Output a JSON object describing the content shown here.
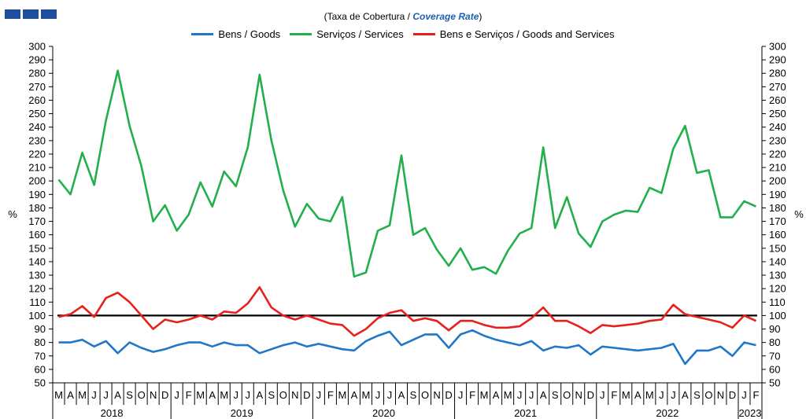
{
  "title": {
    "prefix": "(Taxa de Cobertura / ",
    "english": "Coverage Rate",
    "suffix": ")"
  },
  "colors": {
    "logo": "#1f4e9c",
    "goods": "#1f77c8",
    "services": "#21b04b",
    "goods_services": "#e8201c",
    "reference": "#000000"
  },
  "chart_data": {
    "type": "line",
    "title": "(Taxa de Cobertura / Coverage Rate)",
    "ylabel_left": "%",
    "ylabel_right": "%",
    "ylim": [
      50,
      300
    ],
    "y_ticks": [
      50,
      60,
      70,
      80,
      90,
      100,
      110,
      120,
      130,
      140,
      150,
      160,
      170,
      180,
      190,
      200,
      210,
      220,
      230,
      240,
      250,
      260,
      270,
      280,
      290,
      300
    ],
    "grid": false,
    "legend_position": "top",
    "reference_line": 100,
    "months": [
      "M",
      "A",
      "M",
      "J",
      "J",
      "A",
      "S",
      "O",
      "N",
      "D",
      "J",
      "F",
      "M",
      "A",
      "M",
      "J",
      "J",
      "A",
      "S",
      "O",
      "N",
      "D",
      "J",
      "F",
      "M",
      "A",
      "M",
      "J",
      "J",
      "A",
      "S",
      "O",
      "N",
      "D",
      "J",
      "F",
      "M",
      "A",
      "M",
      "J",
      "J",
      "A",
      "S",
      "O",
      "N",
      "D",
      "J",
      "F",
      "M",
      "A",
      "M",
      "J",
      "J",
      "A",
      "S",
      "O",
      "N",
      "D",
      "J",
      "F"
    ],
    "years": [
      {
        "label": "2018",
        "start": 0,
        "end": 9
      },
      {
        "label": "2019",
        "start": 10,
        "end": 21
      },
      {
        "label": "2020",
        "start": 22,
        "end": 33
      },
      {
        "label": "2021",
        "start": 34,
        "end": 45
      },
      {
        "label": "2022",
        "start": 46,
        "end": 57
      },
      {
        "label": "2023",
        "start": 58,
        "end": 59
      }
    ],
    "series": [
      {
        "name": "Bens / Goods",
        "color": "#1f77c8",
        "values": [
          80,
          80,
          82,
          77,
          81,
          72,
          80,
          76,
          73,
          75,
          78,
          80,
          80,
          77,
          80,
          78,
          78,
          72,
          75,
          78,
          80,
          77,
          79,
          77,
          75,
          74,
          81,
          85,
          88,
          78,
          82,
          86,
          86,
          76,
          86,
          89,
          85,
          82,
          80,
          78,
          81,
          74,
          77,
          76,
          78,
          71,
          77,
          76,
          75,
          74,
          75,
          76,
          79,
          64,
          74,
          74,
          77,
          70,
          80,
          78
        ]
      },
      {
        "name": "Serviços / Services",
        "color": "#21b04b",
        "values": [
          201,
          190,
          221,
          197,
          245,
          282,
          241,
          211,
          170,
          182,
          163,
          175,
          199,
          181,
          207,
          196,
          225,
          279,
          230,
          193,
          166,
          183,
          172,
          170,
          188,
          129,
          132,
          163,
          167,
          219,
          160,
          165,
          149,
          137,
          150,
          134,
          136,
          131,
          148,
          161,
          165,
          225,
          165,
          188,
          161,
          151,
          170,
          175,
          178,
          177,
          195,
          191,
          224,
          241,
          206,
          208,
          173,
          173,
          185,
          181
        ]
      },
      {
        "name": "Bens e Serviços / Goods and Services",
        "color": "#e8201c",
        "values": [
          99,
          101,
          107,
          99,
          113,
          117,
          110,
          100,
          90,
          97,
          95,
          97,
          100,
          97,
          103,
          102,
          109,
          121,
          106,
          100,
          97,
          100,
          97,
          94,
          93,
          85,
          90,
          98,
          102,
          104,
          96,
          98,
          96,
          89,
          96,
          96,
          93,
          91,
          91,
          92,
          98,
          106,
          96,
          96,
          92,
          87,
          93,
          92,
          93,
          94,
          96,
          97,
          108,
          101,
          99,
          97,
          95,
          91,
          100,
          96
        ]
      }
    ]
  }
}
